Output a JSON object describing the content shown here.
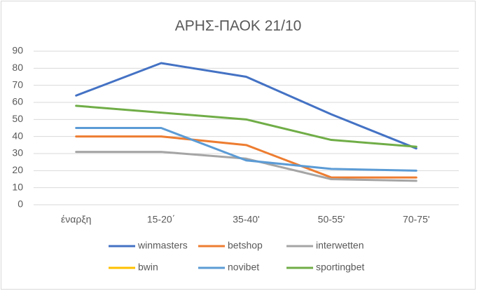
{
  "chart_data": {
    "type": "line",
    "title": "ΑΡΗΣ-ΠΑΟΚ 21/10",
    "categories": [
      "έναρξη",
      "15-20΄",
      "35-40'",
      "50-55'",
      "70-75'"
    ],
    "series": [
      {
        "name": "winmasters",
        "color": "#4472c4",
        "values": [
          64,
          83,
          75,
          53,
          33
        ]
      },
      {
        "name": "betshop",
        "color": "#ed7d31",
        "values": [
          40,
          40,
          35,
          16,
          16
        ]
      },
      {
        "name": "interwetten",
        "color": "#a5a5a5",
        "values": [
          31,
          31,
          27,
          15,
          14
        ]
      },
      {
        "name": "bwin",
        "color": "#ffc000",
        "values": [
          null,
          null,
          null,
          null,
          null
        ]
      },
      {
        "name": "novibet",
        "color": "#5b9bd5",
        "values": [
          45,
          45,
          26,
          21,
          20
        ]
      },
      {
        "name": "sportingbet",
        "color": "#70ad47",
        "values": [
          58,
          54,
          50,
          38,
          34
        ]
      }
    ],
    "ylim": [
      0,
      90
    ],
    "yticks": [
      0,
      10,
      20,
      30,
      40,
      50,
      60,
      70,
      80,
      90
    ],
    "grid": true,
    "legend": "bottom"
  }
}
